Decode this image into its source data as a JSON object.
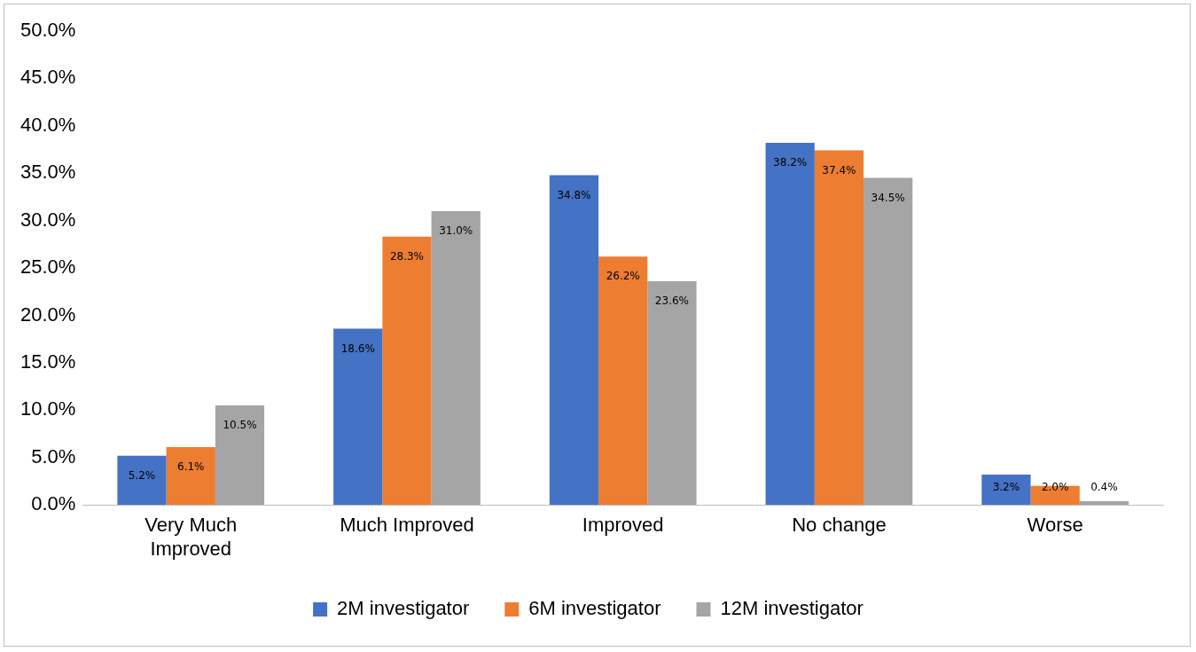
{
  "chart_data": {
    "type": "bar",
    "categories": [
      "Very Much Improved",
      "Much Improved",
      "Improved",
      "No change",
      "Worse"
    ],
    "series": [
      {
        "name": "2M investigator",
        "color": "#4472c4",
        "values": [
          5.2,
          18.6,
          34.8,
          38.2,
          3.2
        ],
        "value_labels": [
          "5.2%",
          "18.6%",
          "34.8%",
          "38.2%",
          "3.2%"
        ]
      },
      {
        "name": "6M investigator",
        "color": "#ed7d31",
        "values": [
          6.1,
          28.3,
          26.2,
          37.4,
          2.0
        ],
        "value_labels": [
          "6.1%",
          "28.3%",
          "26.2%",
          "37.4%",
          "2.0%"
        ]
      },
      {
        "name": "12M investigator",
        "color": "#a5a5a5",
        "values": [
          10.5,
          31.0,
          23.6,
          34.5,
          0.4
        ],
        "value_labels": [
          "10.5%",
          "31.0%",
          "23.6%",
          "34.5%",
          "0.4%"
        ]
      }
    ],
    "ylim": [
      0,
      50
    ],
    "yticks": [
      {
        "value": 0,
        "label": "0.0%"
      },
      {
        "value": 5,
        "label": "5.0%"
      },
      {
        "value": 10,
        "label": "10.0%"
      },
      {
        "value": 15,
        "label": "15.0%"
      },
      {
        "value": 20,
        "label": "20.0%"
      },
      {
        "value": 25,
        "label": "25.0%"
      },
      {
        "value": 30,
        "label": "30.0%"
      },
      {
        "value": 35,
        "label": "35.0%"
      },
      {
        "value": 40,
        "label": "40.0%"
      },
      {
        "value": 45,
        "label": "45.0%"
      },
      {
        "value": 50,
        "label": "50.0%"
      }
    ],
    "grid": false,
    "legend": "bottom"
  }
}
